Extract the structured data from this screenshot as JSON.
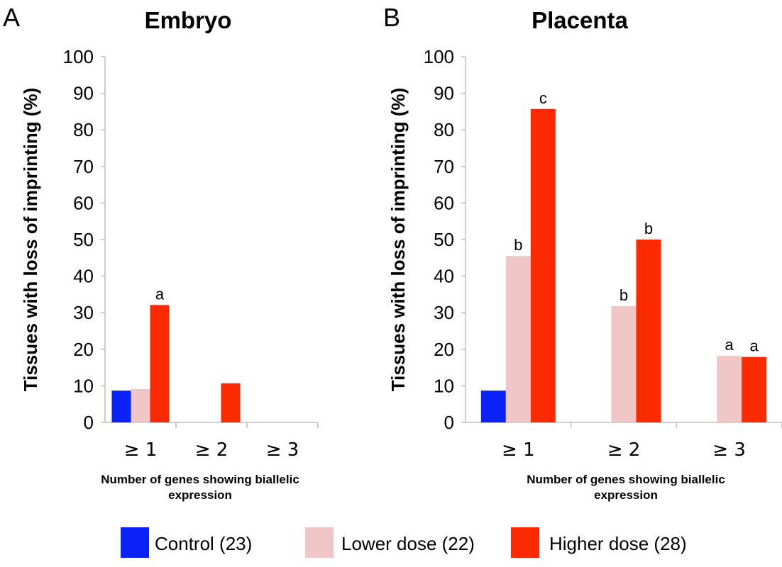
{
  "chart_data": [
    {
      "type": "bar",
      "panel": "A",
      "title": "Embryo",
      "xlabel": "Number of genes showing biallelic expression",
      "ylabel": "Tissues with loss of imprinting (%)",
      "ylim": [
        0,
        100
      ],
      "yticks": [
        "0",
        "10",
        "20",
        "30",
        "40",
        "50",
        "60",
        "70",
        "80",
        "90",
        "100"
      ],
      "categories": [
        "≥ 1",
        "≥ 2",
        "≥ 3"
      ],
      "series": [
        {
          "name": "Control (23)",
          "values": [
            8.7,
            null,
            null
          ],
          "labels": [
            "",
            "",
            ""
          ]
        },
        {
          "name": "Lower dose (22)",
          "values": [
            9.1,
            null,
            null
          ],
          "labels": [
            "",
            "",
            ""
          ]
        },
        {
          "name": "Higher dose (28)",
          "values": [
            32.1,
            10.7,
            null
          ],
          "labels": [
            "a",
            "",
            ""
          ]
        }
      ]
    },
    {
      "type": "bar",
      "panel": "B",
      "title": "Placenta",
      "xlabel": "Number of genes showing biallelic expression",
      "ylabel": "Tissues with loss of imprinting (%)",
      "ylim": [
        0,
        100
      ],
      "yticks": [
        "0",
        "10",
        "20",
        "30",
        "40",
        "50",
        "60",
        "70",
        "80",
        "90",
        "100"
      ],
      "categories": [
        "≥ 1",
        "≥ 2",
        "≥ 3"
      ],
      "series": [
        {
          "name": "Control (23)",
          "values": [
            8.7,
            null,
            null
          ],
          "labels": [
            "",
            "",
            ""
          ]
        },
        {
          "name": "Lower dose (22)",
          "values": [
            45.5,
            31.8,
            18.2
          ],
          "labels": [
            "b",
            "b",
            "a"
          ]
        },
        {
          "name": "Higher dose (28)",
          "values": [
            85.7,
            50.0,
            17.9
          ],
          "labels": [
            "c",
            "b",
            "a"
          ]
        }
      ]
    }
  ],
  "legend": [
    {
      "label": "Control (23)",
      "color": "#0a22f5"
    },
    {
      "label": "Lower dose (22)",
      "color": "#f0c6c6"
    },
    {
      "label": "Higher dose (28)",
      "color": "#fc2a00"
    }
  ],
  "colors": {
    "control": "#0a22f5",
    "lower": "#f0c6c6",
    "higher": "#fc2a00",
    "axis": "#bdbdbd"
  }
}
